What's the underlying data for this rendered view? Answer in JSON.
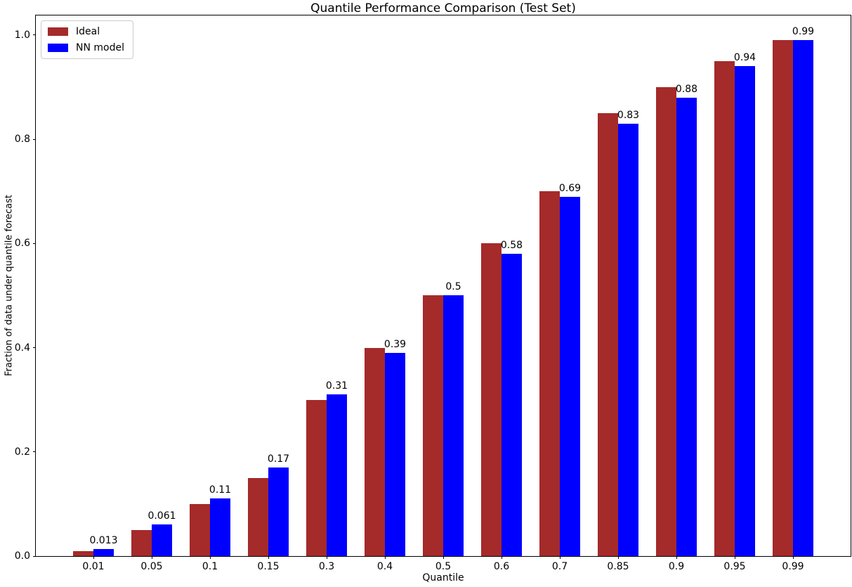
{
  "chart_data": {
    "type": "bar",
    "title": "Quantile Performance Comparison (Test Set)",
    "xlabel": "Quantile",
    "ylabel": "Fraction of data under quantile forecast",
    "categories": [
      "0.01",
      "0.05",
      "0.1",
      "0.15",
      "0.3",
      "0.4",
      "0.5",
      "0.6",
      "0.7",
      "0.85",
      "0.9",
      "0.95",
      "0.99"
    ],
    "series": [
      {
        "name": "Ideal",
        "color": "#A52A2A",
        "values": [
          0.01,
          0.05,
          0.1,
          0.15,
          0.3,
          0.4,
          0.5,
          0.6,
          0.7,
          0.85,
          0.9,
          0.95,
          0.99
        ]
      },
      {
        "name": "NN model",
        "color": "#0000FF",
        "values": [
          0.013,
          0.061,
          0.11,
          0.17,
          0.31,
          0.39,
          0.5,
          0.58,
          0.69,
          0.83,
          0.88,
          0.94,
          0.99
        ]
      }
    ],
    "bar_labels": [
      "0.013",
      "0.061",
      "0.11",
      "0.17",
      "0.31",
      "0.39",
      "0.5",
      "0.58",
      "0.69",
      "0.83",
      "0.88",
      "0.94",
      "0.99"
    ],
    "yticks": [
      "0.0",
      "0.2",
      "0.4",
      "0.6",
      "0.8",
      "1.0"
    ],
    "ylim": [
      0,
      1.0377
    ],
    "legend_position": "upper left",
    "grid": false
  }
}
